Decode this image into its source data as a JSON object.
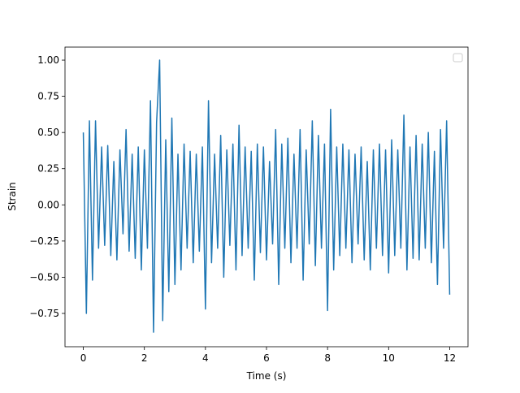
{
  "chart_data": {
    "type": "line",
    "x_label": "Time (s)",
    "y_label": "Strain",
    "xlim": [
      -0.6,
      12.6
    ],
    "ylim": [
      -0.98,
      1.09
    ],
    "xticks": [
      0,
      2,
      4,
      6,
      8,
      10,
      12
    ],
    "yticks": [
      {
        "value": -0.75,
        "label": "−0.75"
      },
      {
        "value": -0.5,
        "label": "−0.50"
      },
      {
        "value": -0.25,
        "label": "−0.25"
      },
      {
        "value": 0,
        "label": "0.00"
      },
      {
        "value": 0.25,
        "label": "0.25"
      },
      {
        "value": 0.5,
        "label": "0.50"
      },
      {
        "value": 0.75,
        "label": "0.75"
      },
      {
        "value": 1,
        "label": "1.00"
      }
    ],
    "x": [
      0,
      0.1,
      0.2,
      0.3,
      0.4,
      0.5,
      0.6,
      0.7,
      0.8,
      0.9,
      1,
      1.1,
      1.2,
      1.3,
      1.4,
      1.5,
      1.6,
      1.7,
      1.8,
      1.9,
      2,
      2.1,
      2.2,
      2.3,
      2.4,
      2.5,
      2.6,
      2.7,
      2.8,
      2.9,
      3,
      3.1,
      3.2,
      3.3,
      3.4,
      3.5,
      3.6,
      3.7,
      3.8,
      3.9,
      4,
      4.1,
      4.2,
      4.3,
      4.4,
      4.5,
      4.6,
      4.7,
      4.8,
      4.9,
      5,
      5.1,
      5.2,
      5.3,
      5.4,
      5.5,
      5.6,
      5.7,
      5.8,
      5.9,
      6,
      6.1,
      6.2,
      6.3,
      6.4,
      6.5,
      6.6,
      6.7,
      6.8,
      6.9,
      7,
      7.1,
      7.2,
      7.3,
      7.4,
      7.5,
      7.6,
      7.7,
      7.8,
      7.9,
      8,
      8.1,
      8.2,
      8.3,
      8.4,
      8.5,
      8.6,
      8.7,
      8.8,
      8.9,
      9,
      9.1,
      9.2,
      9.3,
      9.4,
      9.5,
      9.6,
      9.7,
      9.8,
      9.9,
      10,
      10.1,
      10.2,
      10.3,
      10.4,
      10.5,
      10.6,
      10.7,
      10.8,
      10.9,
      11,
      11.1,
      11.2,
      11.3,
      11.4,
      11.5,
      11.6,
      11.7,
      11.8,
      11.9,
      12
    ],
    "series": [
      {
        "color": "#1f77b4",
        "values": [
          0.5,
          -0.75,
          0.58,
          -0.52,
          0.58,
          -0.3,
          0.4,
          -0.28,
          0.41,
          -0.35,
          0.3,
          -0.38,
          0.38,
          -0.2,
          0.52,
          -0.32,
          0.35,
          -0.37,
          0.4,
          -0.45,
          0.38,
          -0.3,
          0.72,
          -0.88,
          0.57,
          1.0,
          -0.8,
          0.45,
          -0.6,
          0.6,
          -0.55,
          0.35,
          -0.45,
          0.42,
          -0.3,
          0.37,
          -0.4,
          0.35,
          -0.32,
          0.4,
          -0.72,
          0.72,
          -0.4,
          0.35,
          -0.3,
          0.48,
          -0.5,
          0.38,
          -0.28,
          0.42,
          -0.45,
          0.55,
          -0.35,
          0.4,
          -0.3,
          0.37,
          -0.52,
          0.42,
          -0.33,
          0.4,
          -0.38,
          0.3,
          -0.27,
          0.52,
          -0.55,
          0.42,
          -0.3,
          0.46,
          -0.4,
          0.35,
          -0.3,
          0.52,
          -0.52,
          0.38,
          -0.27,
          0.58,
          -0.42,
          0.48,
          -0.3,
          0.42,
          -0.73,
          0.66,
          -0.45,
          0.4,
          -0.35,
          0.42,
          -0.3,
          0.38,
          -0.4,
          0.35,
          -0.27,
          0.4,
          -0.38,
          0.3,
          -0.45,
          0.38,
          -0.3,
          0.42,
          -0.35,
          0.38,
          -0.47,
          0.45,
          -0.35,
          0.38,
          -0.3,
          0.62,
          -0.45,
          0.4,
          -0.37,
          0.48,
          -0.38,
          0.42,
          -0.3,
          0.5,
          -0.4,
          0.37,
          -0.55,
          0.52,
          -0.3,
          0.58,
          -0.62
        ]
      }
    ]
  }
}
